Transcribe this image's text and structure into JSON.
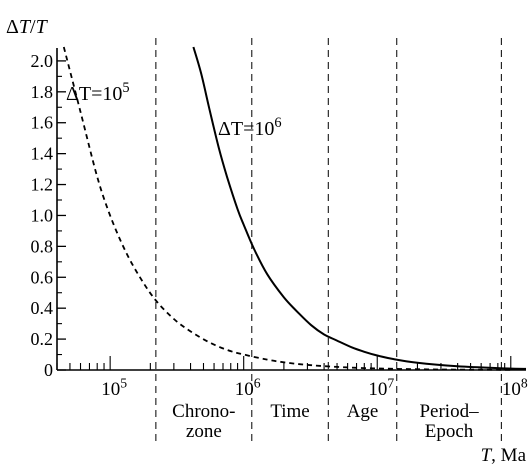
{
  "chart_data": {
    "type": "line",
    "ylabel": "ΔT/T",
    "xlabel": "T, Ma",
    "xscale": "log",
    "xlim": [
      40000,
      130000000
    ],
    "ylim": [
      0,
      2.2
    ],
    "yticks": [
      "0",
      "0.2",
      "0.4",
      "0.6",
      "0.8",
      "1.0",
      "1.2",
      "1.4",
      "1.6",
      "1.8",
      "2.0"
    ],
    "xticks": [
      {
        "value": 100000,
        "base": "10",
        "exp": "5"
      },
      {
        "value": 1000000,
        "base": "10",
        "exp": "6"
      },
      {
        "value": 10000000,
        "base": "10",
        "exp": "7"
      },
      {
        "value": 100000000,
        "base": "10",
        "exp": "8"
      }
    ],
    "series": [
      {
        "name": "ΔT=10^5",
        "base": "ΔT=10",
        "exp": "5",
        "style": "dashed",
        "x": [
          45000,
          60000,
          80000,
          100000,
          130000,
          170000,
          220000,
          300000,
          400000,
          550000,
          750000,
          1000000,
          1500000,
          2200000,
          3200000,
          5000000,
          8000000,
          15000000,
          30000000,
          60000000,
          100000000
        ],
        "y": [
          2.09,
          1.67,
          1.25,
          1.0,
          0.77,
          0.59,
          0.45,
          0.33,
          0.25,
          0.18,
          0.13,
          0.1,
          0.067,
          0.045,
          0.031,
          0.02,
          0.0125,
          0.0067,
          0.0033,
          0.0017,
          0.001
        ]
      },
      {
        "name": "ΔT=10^6",
        "base": "ΔT=10",
        "exp": "6",
        "style": "solid",
        "x": [
          420000,
          480000,
          550000,
          650000,
          750000,
          900000,
          1000000,
          1200000,
          1500000,
          2000000,
          2500000,
          3200000,
          4000000,
          5000000,
          6500000,
          8000000,
          10000000,
          13000000,
          20000000,
          40000000,
          80000000,
          130000000
        ],
        "y": [
          2.09,
          1.92,
          1.7,
          1.44,
          1.25,
          1.04,
          0.94,
          0.78,
          0.62,
          0.47,
          0.38,
          0.29,
          0.23,
          0.19,
          0.145,
          0.118,
          0.094,
          0.072,
          0.047,
          0.024,
          0.012,
          0.007
        ]
      }
    ],
    "boundaries": [
      {
        "value": 220000,
        "label": [
          "Chrono-",
          "zone"
        ]
      },
      {
        "value": 1150000,
        "label": [
          "Time"
        ]
      },
      {
        "value": 4300000,
        "label": [
          "Age"
        ]
      },
      {
        "value": 14000000,
        "label": [
          "Period–",
          "Epoch"
        ]
      },
      {
        "value": 85000000,
        "label": []
      }
    ]
  }
}
